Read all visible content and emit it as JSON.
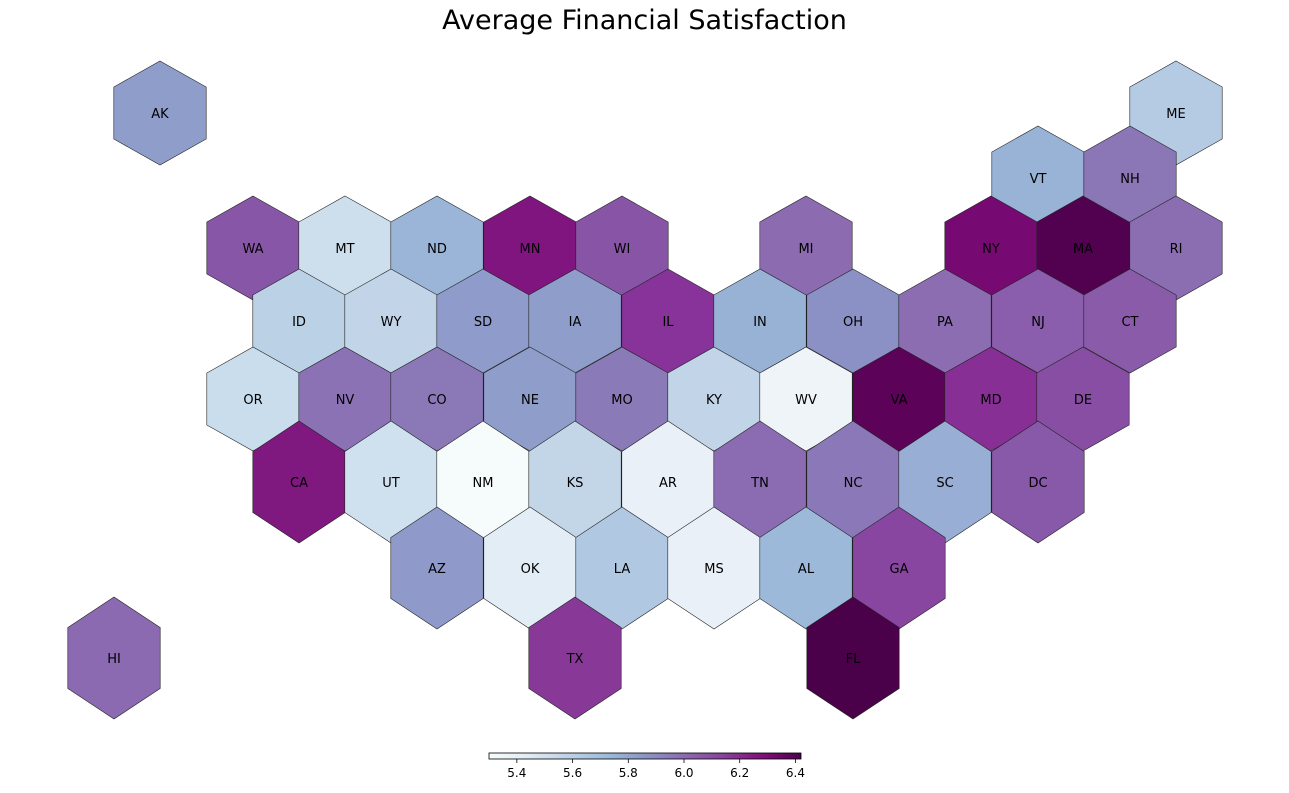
{
  "title": "Average Financial Satisfaction",
  "colorbar": {
    "min": 5.3,
    "max": 6.42,
    "ticks": [
      "5.4",
      "5.6",
      "5.8",
      "6.0",
      "6.2",
      "6.4"
    ],
    "palette": [
      "#f7fcfd",
      "#e0ecf4",
      "#bfd3e6",
      "#9ebcda",
      "#8c96c6",
      "#8c6bb1",
      "#88419d",
      "#810f7c",
      "#4d004b"
    ]
  },
  "chart_data": {
    "type": "hex-tile-map",
    "title": "Average Financial Satisfaction",
    "states": [
      {
        "abbr": "AK",
        "value": 5.85,
        "fill": "#8f9dcb"
      },
      {
        "abbr": "ME",
        "value": 5.6,
        "fill": "#b5cbe3"
      },
      {
        "abbr": "VT",
        "value": 5.7,
        "fill": "#98b3d6"
      },
      {
        "abbr": "NH",
        "value": 6.05,
        "fill": "#8b76b6"
      },
      {
        "abbr": "WA",
        "value": 6.1,
        "fill": "#8856a7"
      },
      {
        "abbr": "MT",
        "value": 5.55,
        "fill": "#cddfed"
      },
      {
        "abbr": "ND",
        "value": 5.7,
        "fill": "#9ab5d7"
      },
      {
        "abbr": "MN",
        "value": 6.25,
        "fill": "#801580"
      },
      {
        "abbr": "WI",
        "value": 6.1,
        "fill": "#8854a6"
      },
      {
        "abbr": "MI",
        "value": 6.05,
        "fill": "#8c6bb1"
      },
      {
        "abbr": "NY",
        "value": 6.3,
        "fill": "#770a72"
      },
      {
        "abbr": "MA",
        "value": 6.4,
        "fill": "#520150"
      },
      {
        "abbr": "RI",
        "value": 6.05,
        "fill": "#8b6db2"
      },
      {
        "abbr": "ID",
        "value": 5.6,
        "fill": "#bbd1e6"
      },
      {
        "abbr": "WY",
        "value": 5.6,
        "fill": "#c2d5e8"
      },
      {
        "abbr": "SD",
        "value": 5.85,
        "fill": "#8f9bcb"
      },
      {
        "abbr": "IA",
        "value": 5.85,
        "fill": "#8f9dcb"
      },
      {
        "abbr": "IL",
        "value": 6.2,
        "fill": "#88339a"
      },
      {
        "abbr": "IN",
        "value": 5.75,
        "fill": "#98b2d6"
      },
      {
        "abbr": "OH",
        "value": 5.9,
        "fill": "#8c91c5"
      },
      {
        "abbr": "PA",
        "value": 6.05,
        "fill": "#8c6db2"
      },
      {
        "abbr": "NJ",
        "value": 6.1,
        "fill": "#8a5eac"
      },
      {
        "abbr": "CT",
        "value": 6.1,
        "fill": "#895ba9"
      },
      {
        "abbr": "OR",
        "value": 5.55,
        "fill": "#cadded"
      },
      {
        "abbr": "NV",
        "value": 6.05,
        "fill": "#8b72b5"
      },
      {
        "abbr": "CO",
        "value": 6.0,
        "fill": "#8b78b7"
      },
      {
        "abbr": "NE",
        "value": 5.85,
        "fill": "#8f9dcb"
      },
      {
        "abbr": "MO",
        "value": 6.0,
        "fill": "#8b7ab8"
      },
      {
        "abbr": "KY",
        "value": 5.6,
        "fill": "#c1d4e8"
      },
      {
        "abbr": "WV",
        "value": 5.35,
        "fill": "#eef4f8"
      },
      {
        "abbr": "VA",
        "value": 6.38,
        "fill": "#5c0259"
      },
      {
        "abbr": "MD",
        "value": 6.2,
        "fill": "#882f96"
      },
      {
        "abbr": "DE",
        "value": 6.1,
        "fill": "#884ea4"
      },
      {
        "abbr": "CA",
        "value": 6.25,
        "fill": "#80197f"
      },
      {
        "abbr": "UT",
        "value": 5.5,
        "fill": "#cfe0ee"
      },
      {
        "abbr": "NM",
        "value": 5.3,
        "fill": "#f6fbfc"
      },
      {
        "abbr": "KS",
        "value": 5.6,
        "fill": "#c3d6e8"
      },
      {
        "abbr": "AR",
        "value": 5.4,
        "fill": "#e9f0f7"
      },
      {
        "abbr": "TN",
        "value": 6.05,
        "fill": "#8b6bb1"
      },
      {
        "abbr": "NC",
        "value": 6.0,
        "fill": "#8b78b8"
      },
      {
        "abbr": "SC",
        "value": 5.75,
        "fill": "#98aed5"
      },
      {
        "abbr": "DC",
        "value": 6.1,
        "fill": "#8859a9"
      },
      {
        "abbr": "AZ",
        "value": 5.85,
        "fill": "#8f9acb"
      },
      {
        "abbr": "OK",
        "value": 5.45,
        "fill": "#e3edf5"
      },
      {
        "abbr": "LA",
        "value": 5.65,
        "fill": "#b0c8e1"
      },
      {
        "abbr": "MS",
        "value": 5.4,
        "fill": "#e9f0f7"
      },
      {
        "abbr": "AL",
        "value": 5.7,
        "fill": "#9db9d9"
      },
      {
        "abbr": "GA",
        "value": 6.1,
        "fill": "#8846a1"
      },
      {
        "abbr": "HI",
        "value": 6.05,
        "fill": "#8b6ab1"
      },
      {
        "abbr": "TX",
        "value": 6.15,
        "fill": "#883998"
      },
      {
        "abbr": "FL",
        "value": 6.42,
        "fill": "#4b004a"
      }
    ]
  }
}
